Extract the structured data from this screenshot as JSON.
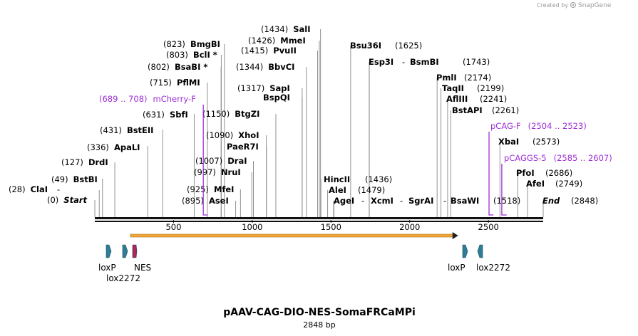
{
  "brand": {
    "created_by": "Created by",
    "product": "SnapGene"
  },
  "map": {
    "name": "pAAV-CAG-DIO-NES-SomaFRCaMPi",
    "length_label": "2848 bp",
    "length_bp": 2848,
    "axis_ticks": [
      "500",
      "1000",
      "1500",
      "2000",
      "2500"
    ],
    "axis_values": [
      500,
      1000,
      1500,
      2000,
      2500
    ]
  },
  "sites": [
    {
      "pos": "(28)",
      "name": "ClaI",
      "bp": 28
    },
    {
      "pos": "(0)",
      "name": "Start",
      "bp": 0,
      "italic": true
    },
    {
      "pos": "(49)",
      "name": "BstBI",
      "bp": 49
    },
    {
      "pos": "(127)",
      "name": "DrdI",
      "bp": 127
    },
    {
      "pos": "(336)",
      "name": "ApaLI",
      "bp": 336
    },
    {
      "pos": "(431)",
      "name": "BstEII",
      "bp": 431
    },
    {
      "pos": "(631)",
      "name": "SbfI",
      "bp": 631
    },
    {
      "pos": "(715)",
      "name": "PflMI",
      "bp": 715
    },
    {
      "pos": "(802)",
      "name": "BsaBI *",
      "bp": 802
    },
    {
      "pos": "(803)",
      "name": "BclI *",
      "bp": 803
    },
    {
      "pos": "(823)",
      "name": "BmgBI",
      "bp": 823
    },
    {
      "pos": "(895)",
      "name": "AseI",
      "bp": 895
    },
    {
      "pos": "(925)",
      "name": "MfeI",
      "bp": 925
    },
    {
      "pos": "(997)",
      "name": "NruI",
      "bp": 997
    },
    {
      "pos": "(1007)",
      "name": "DraI",
      "bp": 1007
    },
    {
      "pos": "",
      "name": "PaeR7I",
      "bp": 1090
    },
    {
      "pos": "(1090)",
      "name": "XhoI",
      "bp": 1090
    },
    {
      "pos": "(1150)",
      "name": "BtgZI",
      "bp": 1150
    },
    {
      "pos": "",
      "name": "BspQI",
      "bp": 1317
    },
    {
      "pos": "(1317)",
      "name": "SapI",
      "bp": 1317
    },
    {
      "pos": "(1344)",
      "name": "BbvCI",
      "bp": 1344
    },
    {
      "pos": "(1415)",
      "name": "PvuII",
      "bp": 1415
    },
    {
      "pos": "(1426)",
      "name": "MmeI",
      "bp": 1426
    },
    {
      "pos": "(1434)",
      "name": "SalI",
      "bp": 1434
    },
    {
      "pos": "(1436)",
      "name": "HincII",
      "bp": 1436
    },
    {
      "pos": "(1479)",
      "name": "AleI",
      "bp": 1479
    },
    {
      "pos": "",
      "name": "AgeI",
      "bp": 1518
    },
    {
      "pos": "",
      "name": "XcmI",
      "bp": 1518
    },
    {
      "pos": "",
      "name": "SgrAI",
      "bp": 1518
    },
    {
      "pos": "(1518)",
      "name": "BsaWI",
      "bp": 1518
    },
    {
      "pos": "(1625)",
      "name": "Bsu36I",
      "bp": 1625
    },
    {
      "pos": "(1743)",
      "name": "Esp3I",
      "bp": 1743
    },
    {
      "pos": "",
      "name": "BsmBI",
      "bp": 1743
    },
    {
      "pos": "(2174)",
      "name": "PmlI",
      "bp": 2174
    },
    {
      "pos": "(2199)",
      "name": "TaqII",
      "bp": 2199
    },
    {
      "pos": "(2241)",
      "name": "AflIII",
      "bp": 2241
    },
    {
      "pos": "(2261)",
      "name": "BstAPI",
      "bp": 2261
    },
    {
      "pos": "(2573)",
      "name": "XbaI",
      "bp": 2573
    },
    {
      "pos": "(2686)",
      "name": "PfoI",
      "bp": 2686
    },
    {
      "pos": "(2749)",
      "name": "AfeI",
      "bp": 2749
    },
    {
      "pos": "(2848)",
      "name": "End",
      "bp": 2848,
      "italic": true
    }
  ],
  "primers": [
    {
      "range": "(689 .. 708)",
      "name": "mCherry-F",
      "start": 689,
      "end": 708
    },
    {
      "range": "(2504 .. 2523)",
      "name": "pCAG-F",
      "start": 2504,
      "end": 2523
    },
    {
      "range": "(2585 .. 2607)",
      "name": "pCAGGS-5",
      "start": 2585,
      "end": 2607
    }
  ],
  "features": [
    {
      "name": "loxP",
      "type": "site",
      "color": "#2e7d96"
    },
    {
      "name": "lox2272",
      "type": "site",
      "color": "#2e7d96"
    },
    {
      "name": "NES",
      "type": "signal",
      "color": "#b0245c"
    },
    {
      "name": "loxP",
      "type": "site",
      "color": "#2e7d96"
    },
    {
      "name": "lox2272",
      "type": "site",
      "color": "#2e7d96"
    }
  ],
  "orf": {
    "color": "#f0a63a",
    "start_bp": 226,
    "end_bp": 2308
  },
  "colors": {
    "primer": "#9d2fd6",
    "backbone": "#111111",
    "lines": "#777777"
  }
}
